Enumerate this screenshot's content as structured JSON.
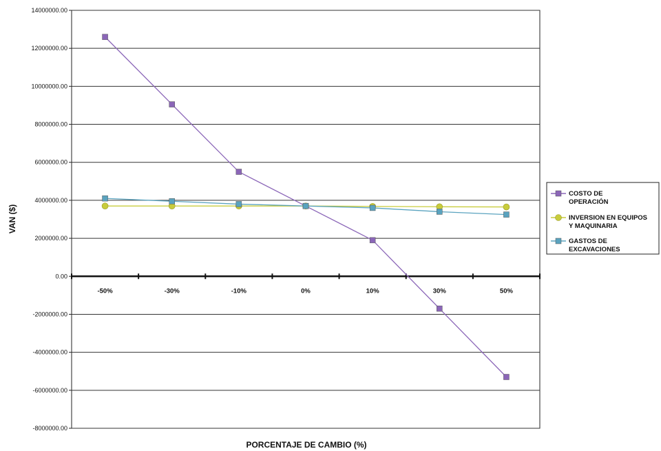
{
  "chart_data": {
    "type": "line",
    "xlabel": "PORCENTAJE DE CAMBIO (%)",
    "ylabel": "VAN ($)",
    "categories": [
      "-50%",
      "-30%",
      "-10%",
      "0%",
      "10%",
      "30%",
      "50%"
    ],
    "ylim": [
      -8000000,
      14000000
    ],
    "yticks": [
      14000000,
      12000000,
      10000000,
      8000000,
      6000000,
      4000000,
      2000000,
      0,
      -2000000,
      -4000000,
      -6000000,
      -8000000
    ],
    "ytick_labels": [
      "14000000.00",
      "12000000.00",
      "10000000.00",
      "8000000.00",
      "6000000.00",
      "4000000.00",
      "2000000.00",
      "0.00",
      "-2000000.00",
      "-4000000.00",
      "-6000000.00",
      "-8000000.00"
    ],
    "grid": true,
    "legend_position": "right",
    "series": [
      {
        "name": "COSTO DE OPERACIÓN",
        "color": "#8b66b8",
        "marker": "square",
        "values": [
          12600000,
          9050000,
          5500000,
          3700000,
          1900000,
          -1700000,
          -5300000
        ]
      },
      {
        "name": "INVERSION EN EQUIPOS Y MAQUINARIA",
        "color": "#c8cc3c",
        "marker": "circle",
        "values": [
          3700000,
          3700000,
          3700000,
          3700000,
          3680000,
          3660000,
          3650000
        ]
      },
      {
        "name": "GASTOS DE EXCAVACIONES",
        "color": "#5aa3bf",
        "marker": "square",
        "values": [
          4100000,
          3950000,
          3800000,
          3700000,
          3600000,
          3400000,
          3250000
        ]
      }
    ],
    "legend": {
      "lines": [
        [
          "COSTO DE",
          "OPERACIÓN"
        ],
        [
          "INVERSION EN EQUIPOS",
          "Y MAQUINARIA"
        ],
        [
          "GASTOS DE",
          "EXCAVACIONES"
        ]
      ]
    }
  }
}
